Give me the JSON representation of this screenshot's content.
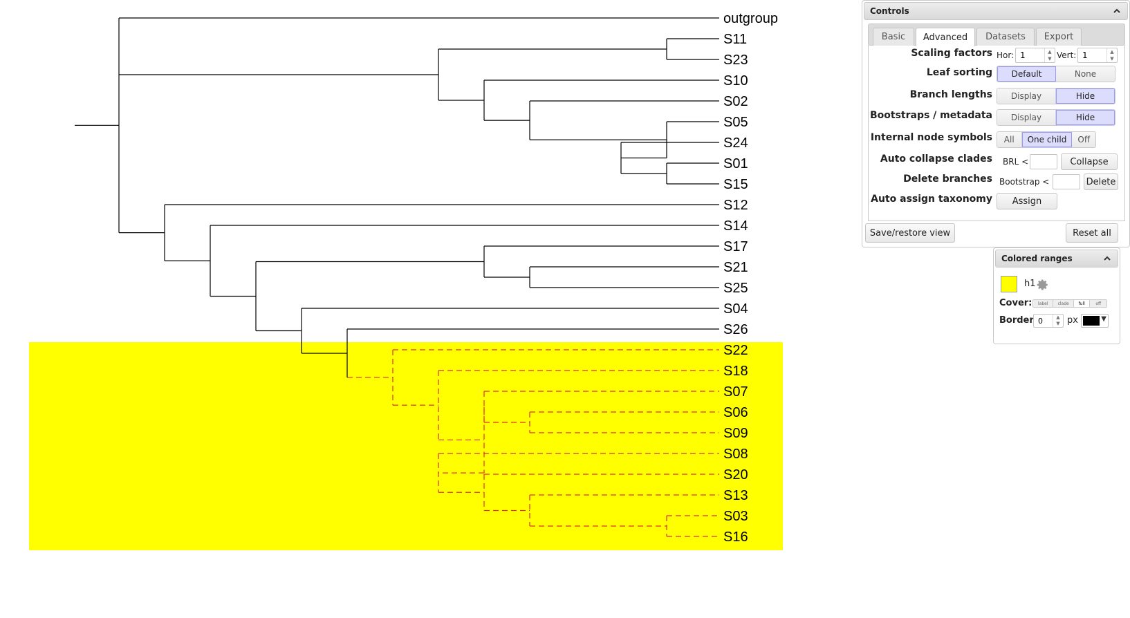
{
  "tree": {
    "leaves": [
      "outgroup",
      "S11",
      "S23",
      "S10",
      "S02",
      "S05",
      "S24",
      "S01",
      "S15",
      "S12",
      "S14",
      "S17",
      "S21",
      "S25",
      "S04",
      "S26",
      "S22",
      "S18",
      "S07",
      "S06",
      "S09",
      "S08",
      "S20",
      "S13",
      "S03",
      "S16"
    ],
    "highlight_color": "#ffff00",
    "highlight_branch_color": "#e03030"
  },
  "controls": {
    "title": "Controls",
    "tabs": [
      {
        "label": "Basic",
        "active": false
      },
      {
        "label": "Advanced",
        "active": true
      },
      {
        "label": "Datasets",
        "active": false
      },
      {
        "label": "Export",
        "active": false
      }
    ],
    "scaling": {
      "label": "Scaling factors",
      "hor_label": "Hor:",
      "hor_value": "1",
      "vert_label": "Vert:",
      "vert_value": "1"
    },
    "leaf_sorting": {
      "label": "Leaf sorting",
      "options": [
        "Default",
        "None"
      ],
      "selected": "Default"
    },
    "branch_lengths": {
      "label": "Branch lengths",
      "options": [
        "Display",
        "Hide"
      ],
      "selected": "Hide"
    },
    "bootstraps": {
      "label": "Bootstraps / metadata",
      "options": [
        "Display",
        "Hide"
      ],
      "selected": "Hide"
    },
    "internal_nodes": {
      "label": "Internal node symbols",
      "options": [
        "All",
        "One child",
        "Off"
      ],
      "selected": "One child"
    },
    "auto_collapse": {
      "label": "Auto collapse clades",
      "prefix": "BRL <",
      "button": "Collapse"
    },
    "delete_branches": {
      "label": "Delete branches",
      "prefix": "Bootstrap <",
      "button": "Delete"
    },
    "auto_taxonomy": {
      "label": "Auto assign taxonomy",
      "button": "Assign"
    },
    "save_restore": "Save/restore view",
    "reset_all": "Reset all"
  },
  "colored_ranges": {
    "title": "Colored ranges",
    "range_name": "h1",
    "range_color": "#ffff00",
    "cover_label": "Cover:",
    "cover_options": [
      "label",
      "clade",
      "full",
      "off"
    ],
    "cover_selected": "full",
    "border_label": "Border:",
    "border_value": "0",
    "border_unit": "px",
    "border_color": "#000000"
  }
}
